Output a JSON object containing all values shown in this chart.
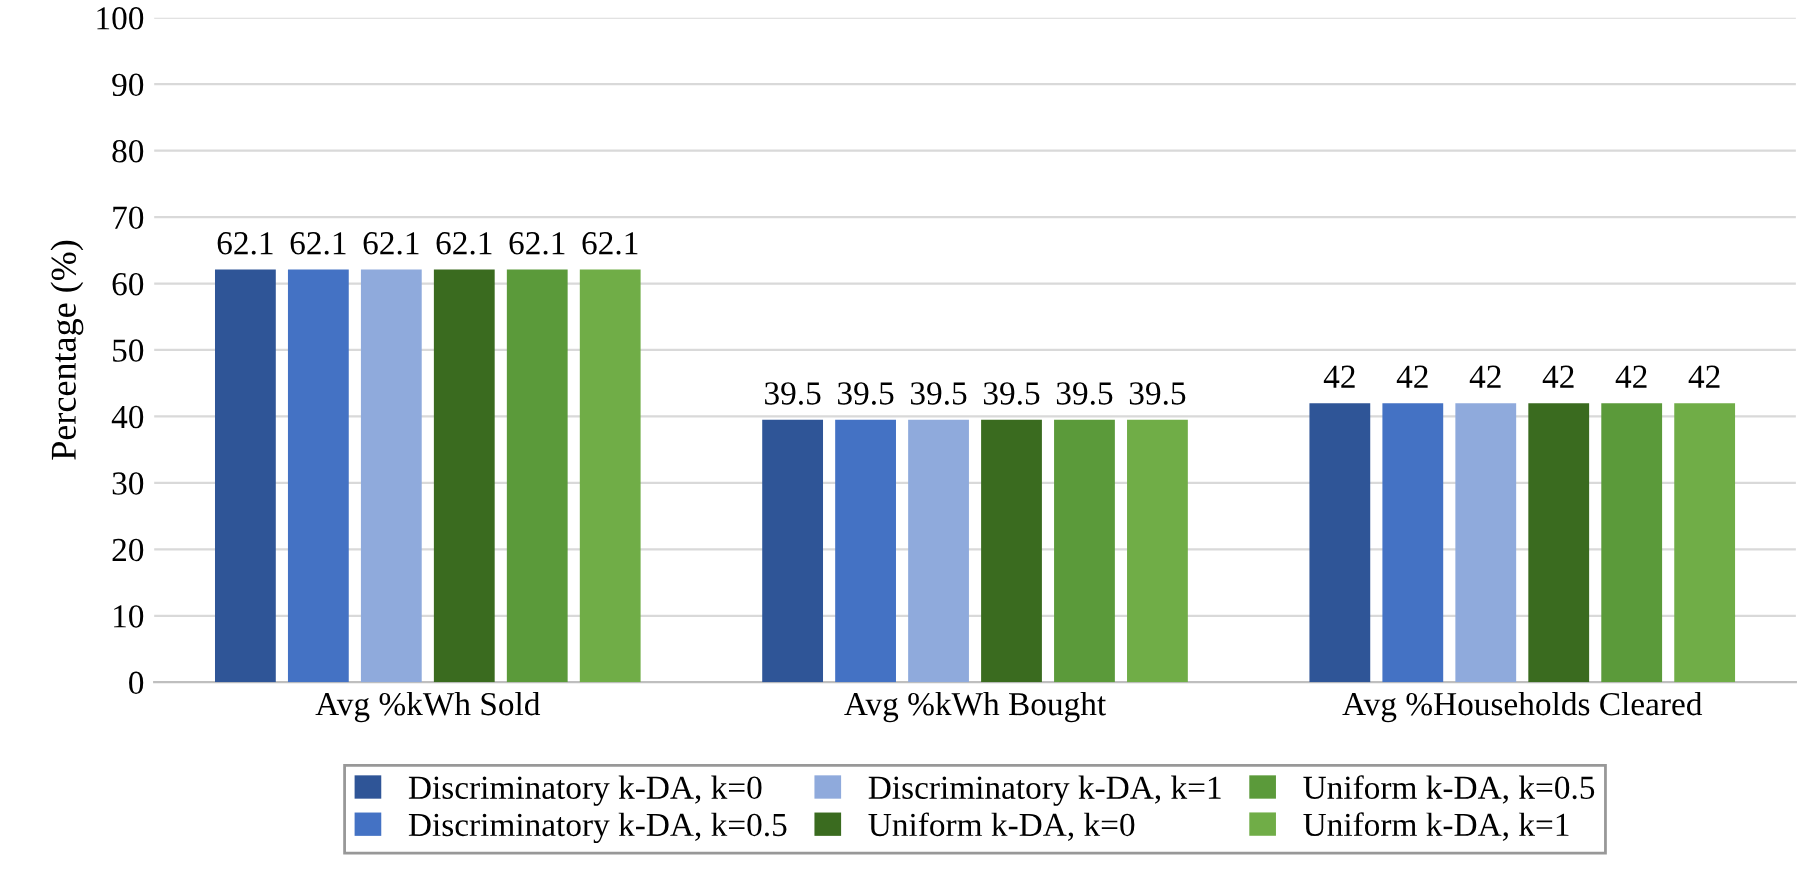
{
  "chart_data": {
    "type": "bar",
    "ylabel": "Percentage (%)",
    "categories": [
      "Avg %kWh Sold",
      "Avg %kWh Bought",
      "Avg %Households Cleared"
    ],
    "series": [
      {
        "name": "Discriminatory k-DA, k=0",
        "color": "#2f5597",
        "values": [
          62.1,
          39.5,
          42
        ]
      },
      {
        "name": "Discriminatory k-DA, k=0.5",
        "color": "#4472c4",
        "values": [
          62.1,
          39.5,
          42
        ]
      },
      {
        "name": "Discriminatory k-DA, k=1",
        "color": "#8faadc",
        "values": [
          62.1,
          39.5,
          42
        ]
      },
      {
        "name": "Uniform k-DA, k=0",
        "color": "#3a6b1f",
        "values": [
          62.1,
          39.5,
          42
        ]
      },
      {
        "name": "Uniform k-DA, k=0.5",
        "color": "#5b9a3a",
        "values": [
          62.1,
          39.5,
          42
        ]
      },
      {
        "name": "Uniform k-DA, k=1",
        "color": "#70ad47",
        "values": [
          62.1,
          39.5,
          42
        ]
      }
    ],
    "ylim": [
      0,
      100
    ],
    "yticks": [
      0,
      10,
      20,
      30,
      40,
      50,
      60,
      70,
      80,
      90,
      100
    ],
    "grid": "y",
    "legend": "bottom",
    "data_labels": true
  }
}
